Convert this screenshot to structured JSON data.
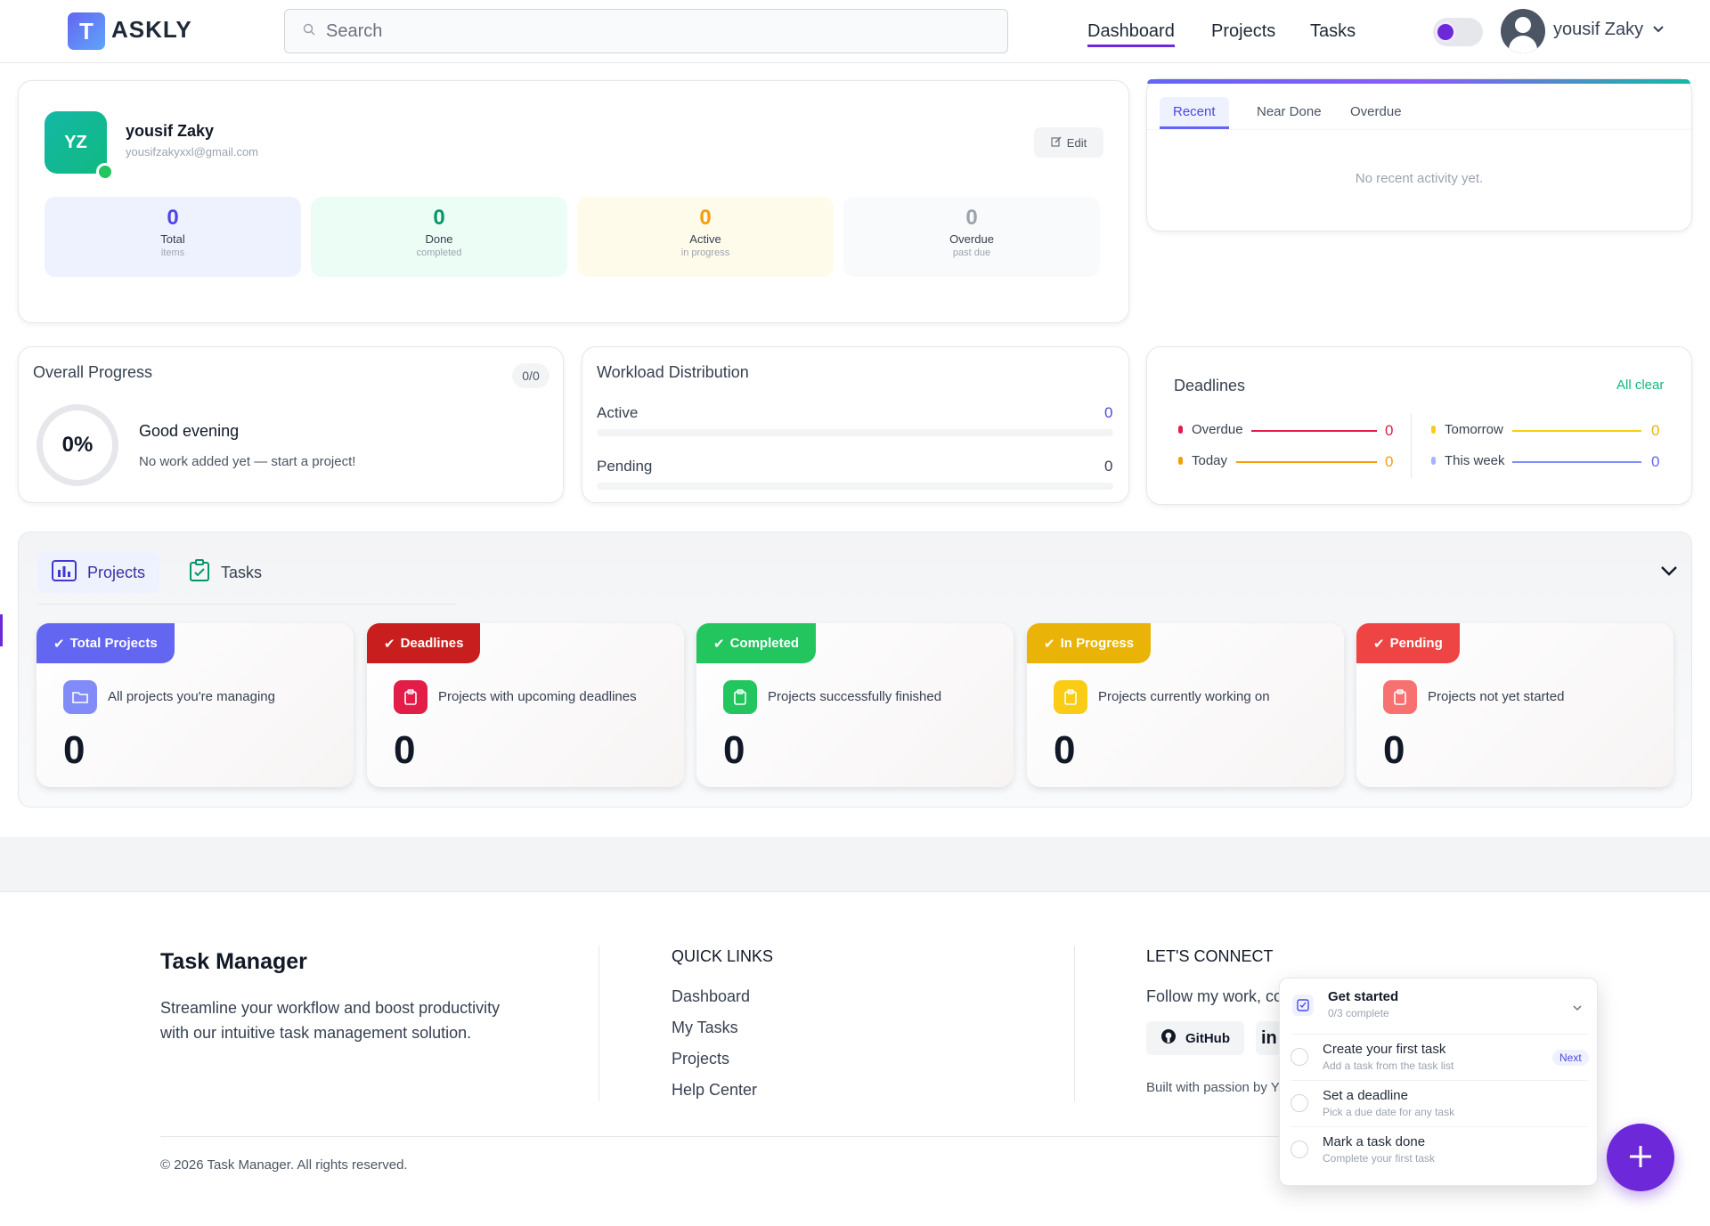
{
  "header": {
    "logo_letter": "T",
    "logo_text": "ASKLY",
    "search_placeholder": "Search",
    "nav": [
      "Dashboard",
      "Projects",
      "Tasks"
    ],
    "active_nav": "Dashboard",
    "user_name": "yousif Zaky"
  },
  "profile": {
    "initials": "YZ",
    "name": "yousif Zaky",
    "email": "yousifzakyxxl@gmail.com",
    "edit_label": "Edit",
    "stats": [
      {
        "value": "0",
        "label": "Total",
        "sub": "items",
        "color": "#4f46e5"
      },
      {
        "value": "0",
        "label": "Done",
        "sub": "completed",
        "color": "#059669"
      },
      {
        "value": "0",
        "label": "Active",
        "sub": "in progress",
        "color": "#f59e0b"
      },
      {
        "value": "0",
        "label": "Overdue",
        "sub": "past due",
        "color": "#9ca3af"
      }
    ]
  },
  "activity": {
    "tabs": [
      "Recent",
      "Near Done",
      "Overdue"
    ],
    "active_tab": "Recent",
    "empty_text": "No recent activity yet."
  },
  "progress": {
    "title": "Overall Progress",
    "count": "0/0",
    "percent": "0%",
    "greeting": "Good evening",
    "message": "No work added yet — start a project!"
  },
  "workload": {
    "title": "Workload Distribution",
    "rows": [
      {
        "label": "Active",
        "value": "0"
      },
      {
        "label": "Pending",
        "value": "0"
      }
    ]
  },
  "deadlines": {
    "title": "Deadlines",
    "status": "All clear",
    "items": [
      {
        "label": "Overdue",
        "value": "0",
        "color": "#e11d48"
      },
      {
        "label": "Today",
        "value": "0",
        "color": "#f59e0b"
      },
      {
        "label": "Tomorrow",
        "value": "0",
        "color": "#facc15"
      },
      {
        "label": "This week",
        "value": "0",
        "color": "#6366f1"
      }
    ]
  },
  "section_tabs": [
    "Projects",
    "Tasks"
  ],
  "project_cards": [
    {
      "tag": "Total Projects",
      "desc": "All projects you're managing",
      "value": "0",
      "color": "#6366f1",
      "icon": "folder-icon"
    },
    {
      "tag": "Deadlines",
      "desc": "Projects with upcoming deadlines",
      "value": "0",
      "color": "#c81e1e",
      "icon": "clipboard-icon"
    },
    {
      "tag": "Completed",
      "desc": "Projects successfully finished",
      "value": "0",
      "color": "#22c55e",
      "icon": "clipboard-icon"
    },
    {
      "tag": "In Progress",
      "desc": "Projects currently working on",
      "value": "0",
      "color": "#eab308",
      "icon": "clipboard-icon"
    },
    {
      "tag": "Pending",
      "desc": "Projects not yet started",
      "value": "0",
      "color": "#ef4444",
      "icon": "clipboard-icon"
    }
  ],
  "footer": {
    "brand_title": "Task Manager",
    "brand_text": "Streamline your workflow and boost productivity with our intuitive task management solution.",
    "quick_links_title": "QUICK LINKS",
    "quick_links": [
      "Dashboard",
      "My Tasks",
      "Projects",
      "Help Center"
    ],
    "connect_title": "LET'S CONNECT",
    "connect_text": "Follow my work, co",
    "github_label": "GitHub",
    "built_text": "Built with passion by Y",
    "copyright": "© 2026 Task Manager. All rights reserved."
  },
  "onboarding": {
    "title": "Get started",
    "progress": "0/3 complete",
    "next_label": "Next",
    "items": [
      {
        "title": "Create your first task",
        "sub": "Add a task from the task list"
      },
      {
        "title": "Set a deadline",
        "sub": "Pick a due date for any task"
      },
      {
        "title": "Mark a task done",
        "sub": "Complete your first task"
      }
    ]
  }
}
